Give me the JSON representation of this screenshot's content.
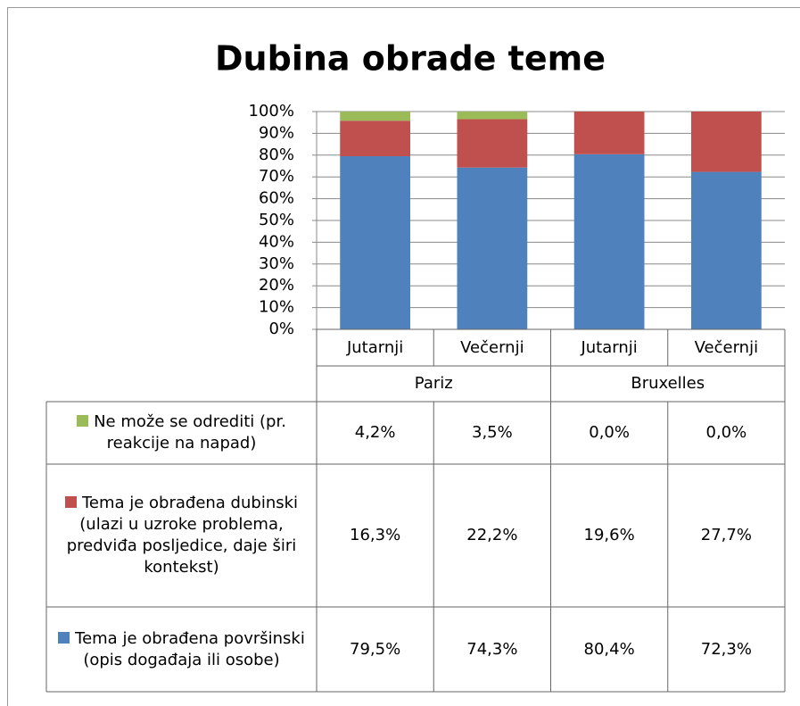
{
  "chart_data": {
    "type": "stacked_bar",
    "title": "Dubina obrade teme",
    "categories": [
      "Jutarnji",
      "Večernji",
      "Jutarnji",
      "Večernji"
    ],
    "groups": [
      {
        "name": "Pariz",
        "span": 2
      },
      {
        "name": "Bruxelles",
        "span": 2
      }
    ],
    "series": [
      {
        "name": "Tema je obrađena površinski (opis događaja ili osobe)",
        "color": "#4f81bd",
        "values": [
          79.5,
          74.3,
          80.4,
          72.3
        ],
        "value_labels": [
          "79,5%",
          "74,3%",
          "80,4%",
          "72,3%"
        ]
      },
      {
        "name": "Tema je obrađena dubinski (ulazi u uzroke problema, predviđa posljedice, daje širi kontekst)",
        "color": "#c0504d",
        "values": [
          16.3,
          22.2,
          19.6,
          27.7
        ],
        "value_labels": [
          "16,3%",
          "22,2%",
          "19,6%",
          "27,7%"
        ]
      },
      {
        "name": "Ne može se odrediti (pr. reakcije na napad)",
        "color": "#9bbb59",
        "values": [
          4.2,
          3.5,
          0.0,
          0.0
        ],
        "value_labels": [
          "4,2%",
          "3,5%",
          "0,0%",
          "0,0%"
        ]
      }
    ],
    "ylim": [
      0,
      100
    ],
    "yticks": [
      {
        "value": 0,
        "label": "0%"
      },
      {
        "value": 10,
        "label": "10%"
      },
      {
        "value": 20,
        "label": "20%"
      },
      {
        "value": 30,
        "label": "30%"
      },
      {
        "value": 40,
        "label": "40%"
      },
      {
        "value": 50,
        "label": "50%"
      },
      {
        "value": 60,
        "label": "60%"
      },
      {
        "value": 70,
        "label": "70%"
      },
      {
        "value": 80,
        "label": "80%"
      },
      {
        "value": 90,
        "label": "90%"
      },
      {
        "value": 100,
        "label": "100%"
      }
    ],
    "grid": true
  }
}
